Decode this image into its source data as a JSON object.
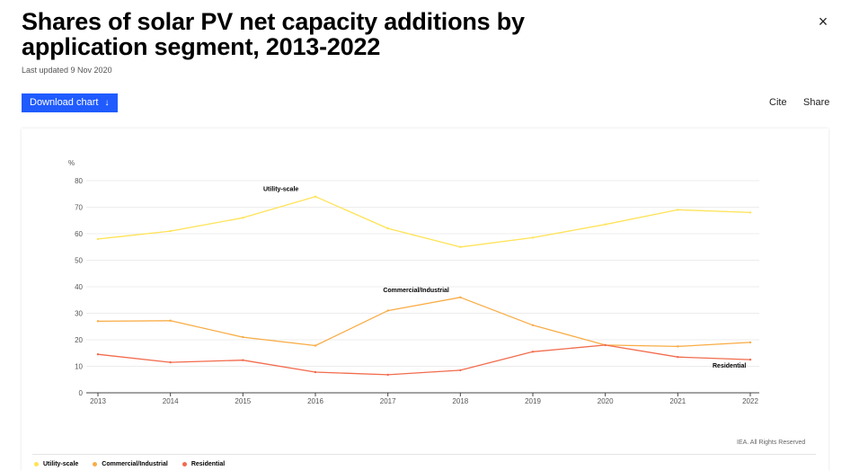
{
  "header": {
    "title": "Shares of solar PV net capacity additions by application segment, 2013-2022",
    "updated": "Last updated 9 Nov 2020",
    "close_symbol": "×"
  },
  "toolbar": {
    "download_label": "Download chart",
    "download_arrow": "↓",
    "cite_label": "Cite",
    "share_label": "Share"
  },
  "colors": {
    "utility": "#ffe357",
    "commercial": "#f9ac45",
    "residential": "#f26b4c",
    "accent": "#1f5bff"
  },
  "footer": {
    "rights": "IEA. All Rights Reserved"
  },
  "chart_data": {
    "type": "line",
    "ylabel": "%",
    "ylim": [
      0,
      80
    ],
    "yticks": [
      0,
      10,
      20,
      30,
      40,
      50,
      60,
      70,
      80
    ],
    "categories": [
      "2013",
      "2014",
      "2015",
      "2016",
      "2017",
      "2018",
      "2019",
      "2020",
      "2021",
      "2022"
    ],
    "grid": true,
    "legend": "bottom-left",
    "series": [
      {
        "name": "Utility-scale",
        "values": [
          58,
          61,
          66,
          74,
          62,
          55,
          58.5,
          63.5,
          69,
          68
        ]
      },
      {
        "name": "Commercial/Industrial",
        "values": [
          27,
          27.2,
          21,
          17.8,
          31,
          36,
          25.5,
          18,
          17.5,
          19
        ]
      },
      {
        "name": "Residential",
        "values": [
          14.5,
          11.5,
          12.3,
          7.8,
          6.8,
          8.5,
          15.5,
          18,
          13.5,
          12.5
        ]
      }
    ]
  }
}
